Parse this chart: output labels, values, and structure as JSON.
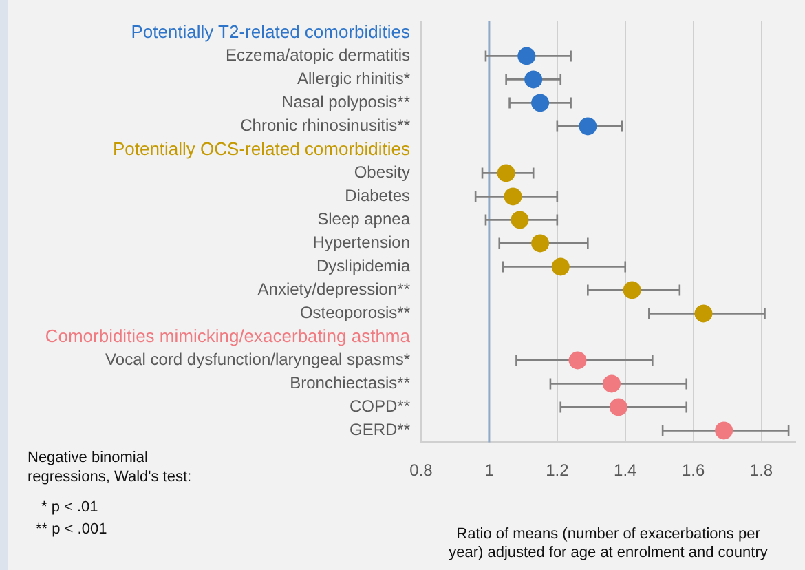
{
  "chart_data": {
    "type": "scatter",
    "orientation": "horizontal",
    "categories": [
      "Potentially T2-related comorbidities",
      "Eczema/atopic dermatitis",
      "Allergic rhinitis*",
      "Nasal polyposis**",
      "Chronic rhinosinusitis**",
      "Potentially OCS-related comorbidities",
      "Obesity",
      "Diabetes",
      "Sleep apnea",
      "Hypertension",
      "Dyslipidemia",
      "Anxiety/depression**",
      "Osteoporosis**",
      "Comorbidities mimicking/exacerbating asthma",
      "Vocal cord dysfunction/laryngeal spasms*",
      "Bronchiectasis**",
      "COPD**",
      "GERD**"
    ],
    "series": [
      {
        "color": "#2e75c9",
        "values": [
          null,
          1.11,
          1.13,
          1.15,
          1.29,
          null,
          null,
          null,
          null,
          null,
          null,
          null,
          null,
          null,
          null,
          null,
          null,
          null
        ],
        "errors": [
          null,
          [
            0.99,
            1.24
          ],
          [
            1.05,
            1.21
          ],
          [
            1.06,
            1.24
          ],
          [
            1.2,
            1.39
          ],
          null,
          null,
          null,
          null,
          null,
          null,
          null,
          null,
          null,
          null,
          null,
          null,
          null
        ]
      },
      {
        "color": "#c49a00",
        "values": [
          null,
          null,
          null,
          null,
          null,
          null,
          1.05,
          1.07,
          1.09,
          1.15,
          1.21,
          1.42,
          1.63,
          null,
          null,
          null,
          null,
          null
        ],
        "errors": [
          null,
          null,
          null,
          null,
          null,
          null,
          [
            0.98,
            1.13
          ],
          [
            0.96,
            1.2
          ],
          [
            0.99,
            1.2
          ],
          [
            1.03,
            1.29
          ],
          [
            1.04,
            1.4
          ],
          [
            1.29,
            1.56
          ],
          [
            1.47,
            1.81
          ],
          null,
          null,
          null,
          null,
          null
        ]
      },
      {
        "color": "#f07a80",
        "values": [
          null,
          null,
          null,
          null,
          null,
          null,
          null,
          null,
          null,
          null,
          null,
          null,
          null,
          null,
          1.26,
          1.36,
          1.38,
          1.69
        ],
        "errors": [
          null,
          null,
          null,
          null,
          null,
          null,
          null,
          null,
          null,
          null,
          null,
          null,
          null,
          null,
          [
            1.08,
            1.48
          ],
          [
            1.18,
            1.58
          ],
          [
            1.21,
            1.58
          ],
          [
            1.51,
            1.88
          ]
        ]
      }
    ],
    "xlim": [
      0.8,
      1.9
    ],
    "xticks": [
      0.8,
      1,
      1.2,
      1.4,
      1.6,
      1.8
    ],
    "xlabel": "Ratio of means (number of exacerbations per year) adjusted for age at enrolment and country",
    "ref_lines": [
      {
        "axis": "x",
        "value": 1,
        "color": "#8fa9c9"
      }
    ],
    "grid": "x",
    "legend": false,
    "marker": "circle",
    "annotations": [
      "Negative binomial regressions, Wald's test:",
      "* p < .01",
      "** p < .001"
    ]
  }
}
